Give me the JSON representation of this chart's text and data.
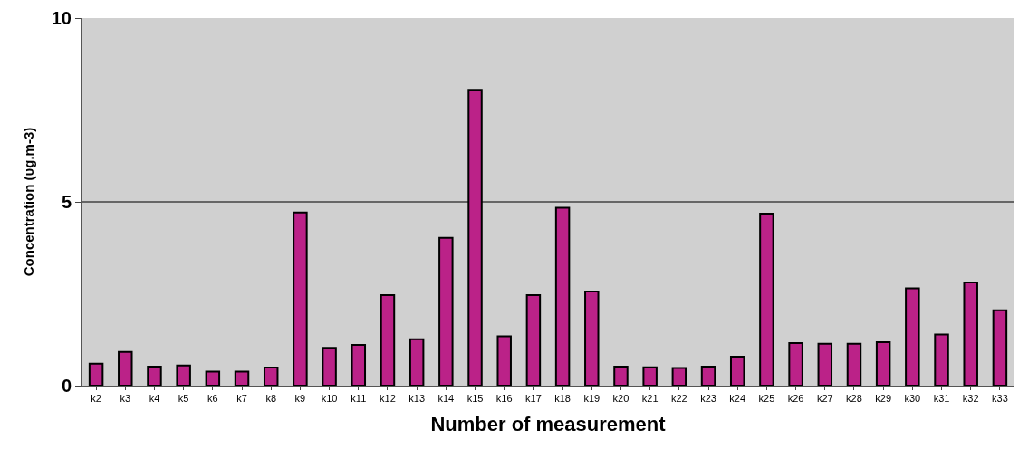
{
  "chart_data": {
    "type": "bar",
    "xlabel": "Number of measurement",
    "ylabel": "Concentration (υg.m-3)",
    "categories": [
      "k2",
      "k3",
      "k4",
      "k5",
      "k6",
      "k7",
      "k8",
      "k9",
      "k10",
      "k11",
      "k12",
      "k13",
      "k14",
      "k15",
      "k16",
      "k17",
      "k18",
      "k19",
      "k20",
      "k21",
      "k22",
      "k23",
      "k24",
      "k25",
      "k26",
      "k27",
      "k28",
      "k29",
      "k30",
      "k31",
      "k32",
      "k33"
    ],
    "values": [
      0.6,
      0.92,
      0.52,
      0.55,
      0.38,
      0.38,
      0.49,
      4.71,
      1.03,
      1.11,
      2.46,
      1.26,
      4.02,
      8.05,
      1.34,
      2.46,
      4.84,
      2.56,
      0.52,
      0.5,
      0.48,
      0.52,
      0.79,
      4.68,
      1.16,
      1.14,
      1.14,
      1.18,
      2.65,
      1.39,
      2.81,
      2.05
    ],
    "color": "#bb2288",
    "ylim": [
      0,
      10
    ],
    "yticks": [
      0,
      5,
      10
    ],
    "grid": "y",
    "legend": false
  }
}
